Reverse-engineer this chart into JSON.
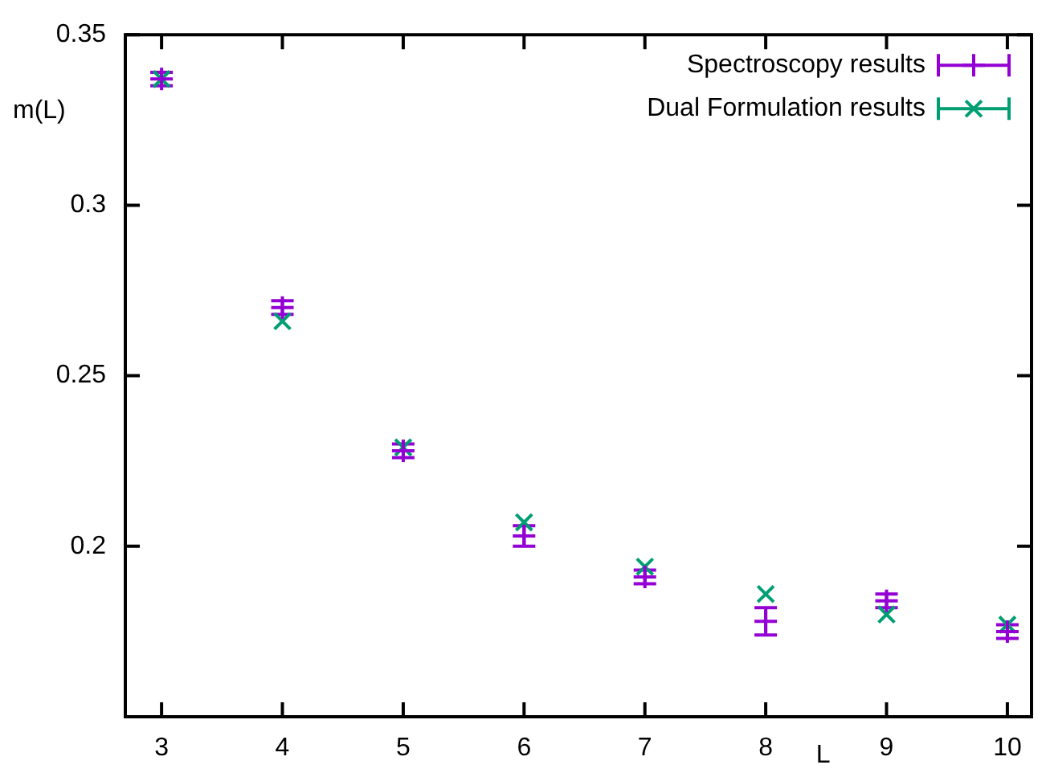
{
  "chart_data": {
    "type": "scatter",
    "xlabel": "L",
    "ylabel": "m(L)",
    "x": [
      3,
      4,
      5,
      6,
      7,
      8,
      9,
      10
    ],
    "series": [
      {
        "name": "Spectroscopy results",
        "color": "#9400d3",
        "marker": "cross",
        "values": [
          0.337,
          0.27,
          0.228,
          0.203,
          0.191,
          0.178,
          0.184,
          0.175
        ],
        "errors": [
          0.002,
          0.002,
          0.002,
          0.003,
          0.002,
          0.004,
          0.002,
          0.002
        ]
      },
      {
        "name": "Dual Formulation results",
        "color": "#009e73",
        "marker": "cross",
        "values": [
          0.337,
          0.266,
          0.229,
          0.207,
          0.194,
          0.186,
          0.18,
          0.177
        ]
      }
    ],
    "xlim": [
      2.7,
      10.2
    ],
    "ylim": [
      0.15,
      0.35
    ],
    "xticks": [
      3,
      4,
      5,
      6,
      7,
      8,
      9,
      10
    ],
    "yticks": [
      0.2,
      0.25,
      0.3,
      0.35
    ],
    "grid": false,
    "legend": "top right"
  }
}
